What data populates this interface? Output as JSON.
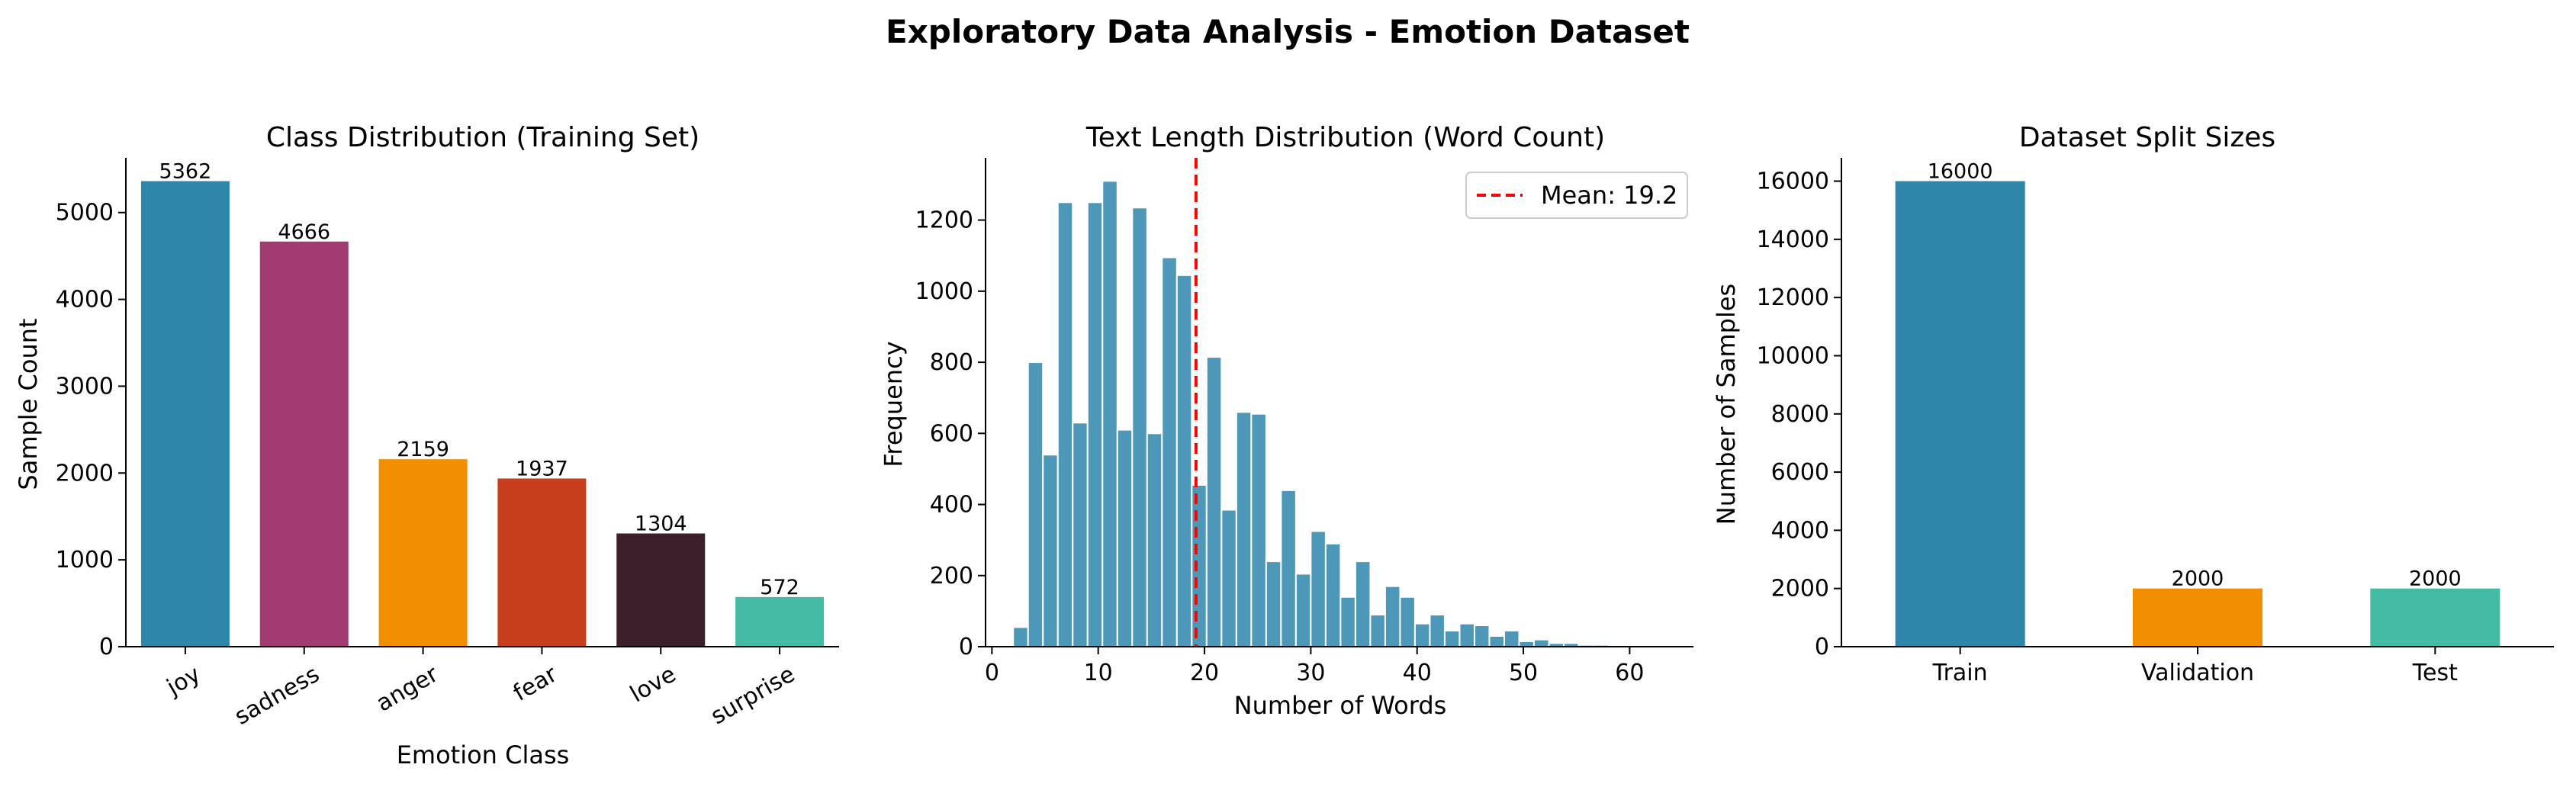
{
  "figure": {
    "suptitle": "Exploratory Data Analysis - Emotion Dataset"
  },
  "chart_data": [
    {
      "type": "bar",
      "title": "Class Distribution (Training Set)",
      "xlabel": "Emotion Class",
      "ylabel": "Sample Count",
      "categories": [
        "joy",
        "sadness",
        "anger",
        "fear",
        "love",
        "surprise"
      ],
      "values": [
        5362,
        4666,
        2159,
        1937,
        1304,
        572
      ],
      "value_labels": [
        "5362",
        "4666",
        "2159",
        "1937",
        "1304",
        "572"
      ],
      "colors": [
        "#2e86ab",
        "#a23b72",
        "#f18f01",
        "#c73e1d",
        "#3b1f2b",
        "#44bba4"
      ],
      "ylim": [
        0,
        5630
      ],
      "yticks": [
        0,
        1000,
        2000,
        3000,
        4000,
        5000
      ],
      "ytick_labels": [
        "0",
        "1000",
        "2000",
        "3000",
        "4000",
        "5000"
      ],
      "xtick_rotation": 30,
      "grid": false,
      "spines": "left-bottom"
    },
    {
      "type": "histogram",
      "title": "Text Length Distribution (Word Count)",
      "xlabel": "Number of Words",
      "ylabel": "Frequency",
      "bar_color": "#2e86ab",
      "bins": [
        {
          "start": 2.0,
          "end": 3.4,
          "count": 55
        },
        {
          "start": 3.4,
          "end": 4.8,
          "count": 800
        },
        {
          "start": 4.8,
          "end": 6.2,
          "count": 540
        },
        {
          "start": 6.2,
          "end": 7.6,
          "count": 1250
        },
        {
          "start": 7.6,
          "end": 9.0,
          "count": 630
        },
        {
          "start": 9.0,
          "end": 10.4,
          "count": 1250
        },
        {
          "start": 10.4,
          "end": 11.8,
          "count": 1310
        },
        {
          "start": 11.8,
          "end": 13.2,
          "count": 610
        },
        {
          "start": 13.2,
          "end": 14.6,
          "count": 1235
        },
        {
          "start": 14.6,
          "end": 16.0,
          "count": 600
        },
        {
          "start": 16.0,
          "end": 17.4,
          "count": 1095
        },
        {
          "start": 17.4,
          "end": 18.8,
          "count": 1045
        },
        {
          "start": 18.8,
          "end": 20.2,
          "count": 455
        },
        {
          "start": 20.2,
          "end": 21.6,
          "count": 815
        },
        {
          "start": 21.6,
          "end": 23.0,
          "count": 385
        },
        {
          "start": 23.0,
          "end": 24.4,
          "count": 660
        },
        {
          "start": 24.4,
          "end": 25.8,
          "count": 655
        },
        {
          "start": 25.8,
          "end": 27.2,
          "count": 240
        },
        {
          "start": 27.2,
          "end": 28.6,
          "count": 440
        },
        {
          "start": 28.6,
          "end": 30.0,
          "count": 205
        },
        {
          "start": 30.0,
          "end": 31.4,
          "count": 325
        },
        {
          "start": 31.4,
          "end": 32.8,
          "count": 290
        },
        {
          "start": 32.8,
          "end": 34.2,
          "count": 140
        },
        {
          "start": 34.2,
          "end": 35.6,
          "count": 240
        },
        {
          "start": 35.6,
          "end": 37.0,
          "count": 90
        },
        {
          "start": 37.0,
          "end": 38.4,
          "count": 170
        },
        {
          "start": 38.4,
          "end": 39.8,
          "count": 140
        },
        {
          "start": 39.8,
          "end": 41.2,
          "count": 65
        },
        {
          "start": 41.2,
          "end": 42.6,
          "count": 90
        },
        {
          "start": 42.6,
          "end": 44.0,
          "count": 45
        },
        {
          "start": 44.0,
          "end": 45.4,
          "count": 65
        },
        {
          "start": 45.4,
          "end": 46.8,
          "count": 60
        },
        {
          "start": 46.8,
          "end": 48.2,
          "count": 30
        },
        {
          "start": 48.2,
          "end": 49.6,
          "count": 45
        },
        {
          "start": 49.6,
          "end": 51.0,
          "count": 15
        },
        {
          "start": 51.0,
          "end": 52.4,
          "count": 20
        },
        {
          "start": 52.4,
          "end": 53.8,
          "count": 10
        },
        {
          "start": 53.8,
          "end": 55.2,
          "count": 10
        },
        {
          "start": 55.2,
          "end": 56.6,
          "count": 5
        },
        {
          "start": 56.6,
          "end": 58.0,
          "count": 5
        }
      ],
      "mean_line": {
        "x": 19.2,
        "label": "Mean: 19.2",
        "color": "#ff0000",
        "style": "dashed"
      },
      "xlim": [
        -0.6,
        66
      ],
      "ylim": [
        0,
        1375
      ],
      "xticks": [
        0,
        10,
        20,
        30,
        40,
        50,
        60
      ],
      "xtick_labels": [
        "0",
        "10",
        "20",
        "30",
        "40",
        "50",
        "60"
      ],
      "yticks": [
        0,
        200,
        400,
        600,
        800,
        1000,
        1200
      ],
      "ytick_labels": [
        "0",
        "200",
        "400",
        "600",
        "800",
        "1000",
        "1200"
      ],
      "legend": {
        "placement": "top-right",
        "entries": [
          "Mean: 19.2"
        ]
      },
      "grid": false,
      "spines": "left-bottom"
    },
    {
      "type": "bar",
      "title": "Dataset Split Sizes",
      "xlabel": "",
      "ylabel": "Number of Samples",
      "categories": [
        "Train",
        "Validation",
        "Test"
      ],
      "values": [
        16000,
        2000,
        2000
      ],
      "value_labels": [
        "16000",
        "2000",
        "2000"
      ],
      "colors": [
        "#2e86ab",
        "#f18f01",
        "#44bba4"
      ],
      "ylim": [
        0,
        16800
      ],
      "yticks": [
        0,
        2000,
        4000,
        6000,
        8000,
        10000,
        12000,
        14000,
        16000
      ],
      "ytick_labels": [
        "0",
        "2000",
        "4000",
        "6000",
        "8000",
        "10000",
        "12000",
        "14000",
        "16000"
      ],
      "grid": false,
      "spines": "left-bottom"
    }
  ]
}
